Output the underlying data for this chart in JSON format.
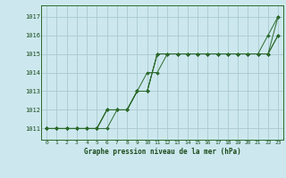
{
  "title": "Graphe pression niveau de la mer (hPa)",
  "bg_color": "#cce8ee",
  "grid_color": "#aac8d0",
  "line_color": "#2d6a2d",
  "text_color": "#1a4a1a",
  "x_ticks": [
    0,
    1,
    2,
    3,
    4,
    5,
    6,
    7,
    8,
    9,
    10,
    11,
    12,
    13,
    14,
    15,
    16,
    17,
    18,
    19,
    20,
    21,
    22,
    23
  ],
  "y_ticks": [
    1011,
    1012,
    1013,
    1014,
    1015,
    1016,
    1017
  ],
  "ylim": [
    1010.4,
    1017.6
  ],
  "xlim": [
    -0.5,
    23.5
  ],
  "series": [
    [
      1011,
      1011,
      1011,
      1011,
      1011,
      1011,
      1012,
      1012,
      1012,
      1013,
      1013,
      1015,
      1015,
      1015,
      1015,
      1015,
      1015,
      1015,
      1015,
      1015,
      1015,
      1015,
      1016,
      1017
    ],
    [
      1011,
      1011,
      1011,
      1011,
      1011,
      1011,
      1012,
      1012,
      1012,
      1013,
      1014,
      1014,
      1015,
      1015,
      1015,
      1015,
      1015,
      1015,
      1015,
      1015,
      1015,
      1015,
      1015,
      1017
    ],
    [
      1011,
      1011,
      1011,
      1011,
      1011,
      1011,
      1012,
      1012,
      1012,
      1013,
      1013,
      1015,
      1015,
      1015,
      1015,
      1015,
      1015,
      1015,
      1015,
      1015,
      1015,
      1015,
      1015,
      1016
    ],
    [
      1011,
      1011,
      1011,
      1011,
      1011,
      1011,
      1011,
      1012,
      1012,
      1013,
      1013,
      1015,
      1015,
      1015,
      1015,
      1015,
      1015,
      1015,
      1015,
      1015,
      1015,
      1015,
      1015,
      1016
    ]
  ]
}
